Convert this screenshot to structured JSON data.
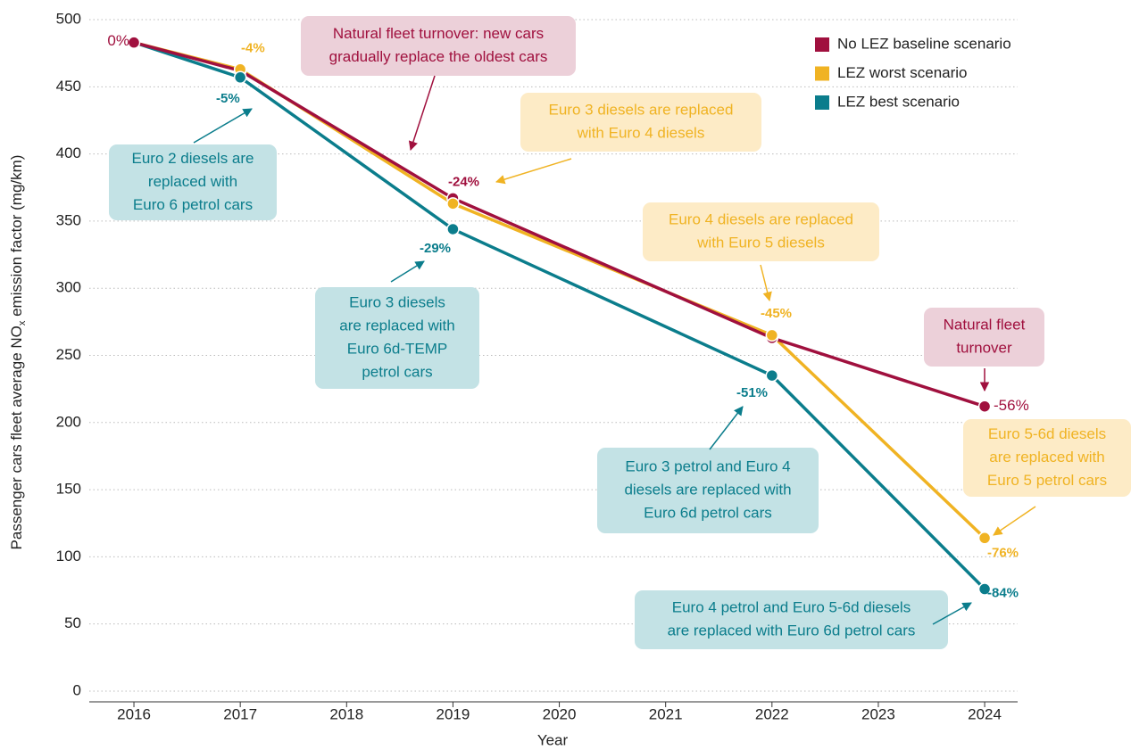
{
  "chart_data": {
    "type": "line",
    "x_label": "Year",
    "y_label": [
      "Passenger cars fleet average NO",
      "x",
      " emission factor (mg/km)"
    ],
    "x": [
      2016,
      2017,
      2019,
      2022,
      2024
    ],
    "xlim": [
      2015.58,
      2024.31
    ],
    "xticks": [
      2016,
      2017,
      2018,
      2019,
      2020,
      2021,
      2022,
      2023,
      2024
    ],
    "ylim": [
      -8,
      508
    ],
    "yticks": [
      0,
      50,
      100,
      150,
      200,
      250,
      300,
      350,
      400,
      450,
      500
    ],
    "grid": true,
    "legend": "upper right",
    "series": [
      {
        "name": "No LEZ baseline scenario",
        "color": "#a0103e",
        "values": [
          483,
          462,
          367,
          263,
          212
        ],
        "change_labels": [
          "0%",
          null,
          "-24%",
          null,
          "-56%"
        ]
      },
      {
        "name": "LEZ worst scenario",
        "color": "#f0b323",
        "values": [
          483,
          463,
          363,
          265,
          114
        ],
        "change_labels": [
          null,
          "-4%",
          null,
          "-45%",
          "-76%"
        ]
      },
      {
        "name": "LEZ best scenario",
        "color": "#0b7d8c",
        "values": [
          483,
          457,
          344,
          235,
          76
        ],
        "change_labels": [
          null,
          "-5%",
          "-29%",
          "-51%",
          "-84%"
        ]
      }
    ],
    "annotations": [
      {
        "series": 0,
        "lines": [
          "Natural fleet turnover: new cars",
          "gradually replace the oldest cars"
        ]
      },
      {
        "series": 1,
        "lines": [
          "Euro 3 diesels are replaced",
          "with Euro 4 diesels"
        ]
      },
      {
        "series": 2,
        "lines": [
          "Euro 2 diesels are",
          "replaced with",
          "Euro 6 petrol cars"
        ]
      },
      {
        "series": 1,
        "lines": [
          "Euro 4 diesels are replaced",
          "with Euro 5 diesels"
        ]
      },
      {
        "series": 2,
        "lines": [
          "Euro 3 diesels",
          "are replaced with",
          "Euro 6d-TEMP",
          "petrol cars"
        ]
      },
      {
        "series": 0,
        "lines": [
          "Natural fleet",
          "turnover"
        ]
      },
      {
        "series": 2,
        "lines": [
          "Euro 3 petrol and Euro 4",
          "diesels are replaced with",
          "Euro 6d petrol cars"
        ]
      },
      {
        "series": 1,
        "lines": [
          "Euro 5-6d diesels",
          "are replaced with",
          "Euro 5 petrol cars"
        ]
      },
      {
        "series": 2,
        "lines": [
          "Euro 4 petrol and Euro 5-6d diesels",
          "are replaced with Euro 6d petrol cars"
        ]
      }
    ]
  }
}
